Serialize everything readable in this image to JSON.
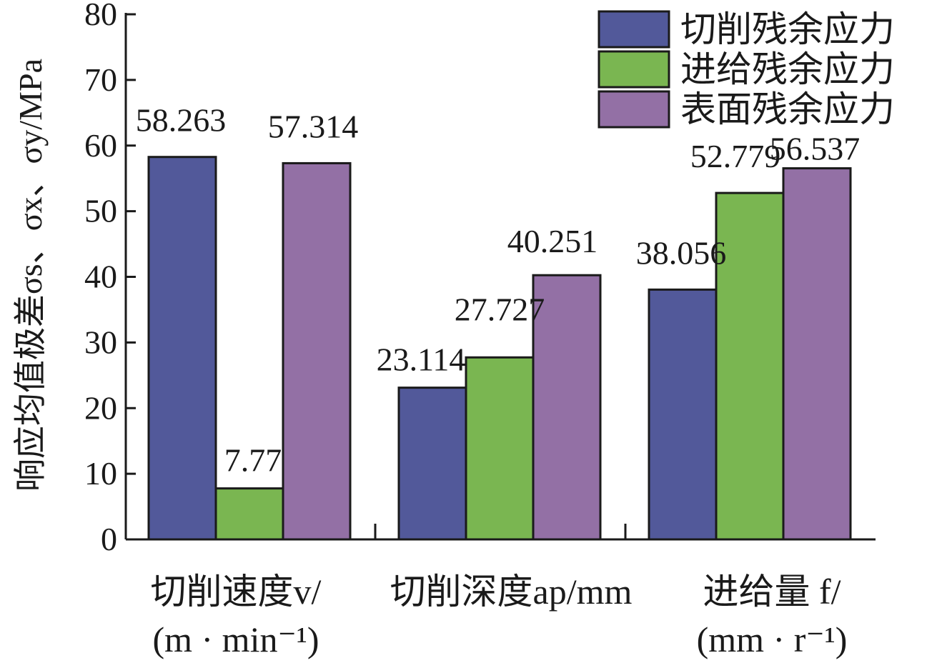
{
  "chart_data": {
    "type": "bar",
    "title": "",
    "ylabel": "响应均值极差σs、σx、σy/MPa",
    "ylim": [
      0,
      80
    ],
    "yticks": [
      0,
      10,
      20,
      30,
      40,
      50,
      60,
      70,
      80
    ],
    "grid": false,
    "legend_position": "top-right",
    "categories": [
      {
        "line1": "切削速度v/",
        "line2": "(m · min⁻¹)"
      },
      {
        "line1": "切削深度ap/mm",
        "line2": ""
      },
      {
        "line1": "进给量 f/",
        "line2": "(mm · r⁻¹)"
      }
    ],
    "series": [
      {
        "name": "切削残余应力",
        "color": "#52599a",
        "values": [
          58.263,
          23.114,
          38.056
        ],
        "labels": [
          "58.263",
          "23.114",
          "38.056"
        ]
      },
      {
        "name": "进给残余应力",
        "color": "#7ab651",
        "values": [
          7.77,
          27.727,
          52.779
        ],
        "labels": [
          "7.77",
          "27.727",
          "52.779"
        ]
      },
      {
        "name": "表面残余应力",
        "color": "#9370a5",
        "values": [
          57.314,
          40.251,
          56.537
        ],
        "labels": [
          "57.314",
          "40.251",
          "56.537"
        ]
      }
    ]
  }
}
